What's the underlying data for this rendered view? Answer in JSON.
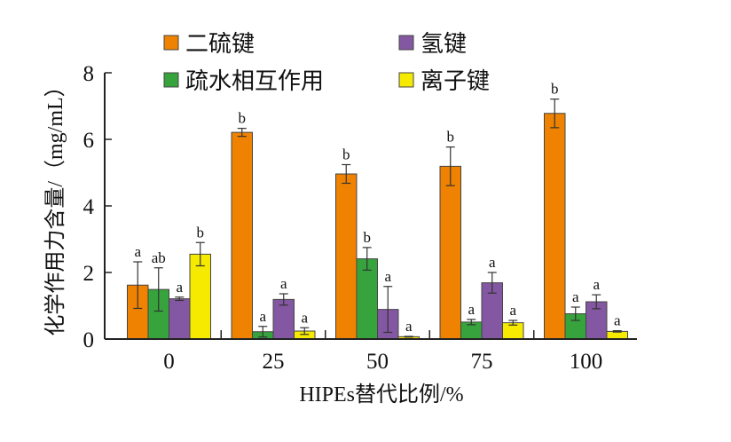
{
  "chart_data": {
    "type": "bar",
    "title": "",
    "xlabel": "HIPEs替代比例/%",
    "ylabel": "化学作用力含量/（mg/mL）",
    "ylim": [
      0,
      8
    ],
    "yticks": [
      "0",
      "2",
      "4",
      "6",
      "8"
    ],
    "categories": [
      "0",
      "25",
      "50",
      "75",
      "100"
    ],
    "legend_position": "top",
    "series": [
      {
        "name": "二硫键",
        "color": "#ef8200",
        "values": [
          1.62,
          6.21,
          4.96,
          5.19,
          6.78
        ],
        "errors": [
          0.7,
          0.12,
          0.28,
          0.58,
          0.43
        ],
        "letters": [
          "a",
          "b",
          "b",
          "b",
          "b"
        ]
      },
      {
        "name": "疏水相互作用",
        "color": "#36a33c",
        "values": [
          1.49,
          0.22,
          2.41,
          0.51,
          0.76
        ],
        "errors": [
          0.65,
          0.16,
          0.34,
          0.08,
          0.2
        ],
        "letters": [
          "ab",
          "a",
          "b",
          "a",
          "a"
        ]
      },
      {
        "name": "氢键",
        "color": "#8357a2",
        "values": [
          1.21,
          1.19,
          0.89,
          1.69,
          1.12
        ],
        "errors": [
          0.05,
          0.17,
          0.69,
          0.31,
          0.21
        ],
        "letters": [
          "a",
          "a",
          "a",
          "a",
          "a"
        ]
      },
      {
        "name": "离子键",
        "color": "#f5ea00",
        "values": [
          2.55,
          0.24,
          0.07,
          0.49,
          0.23
        ],
        "errors": [
          0.35,
          0.1,
          0.01,
          0.07,
          0.02
        ],
        "letters": [
          "b",
          "a",
          "a",
          "a",
          "a"
        ]
      }
    ]
  }
}
